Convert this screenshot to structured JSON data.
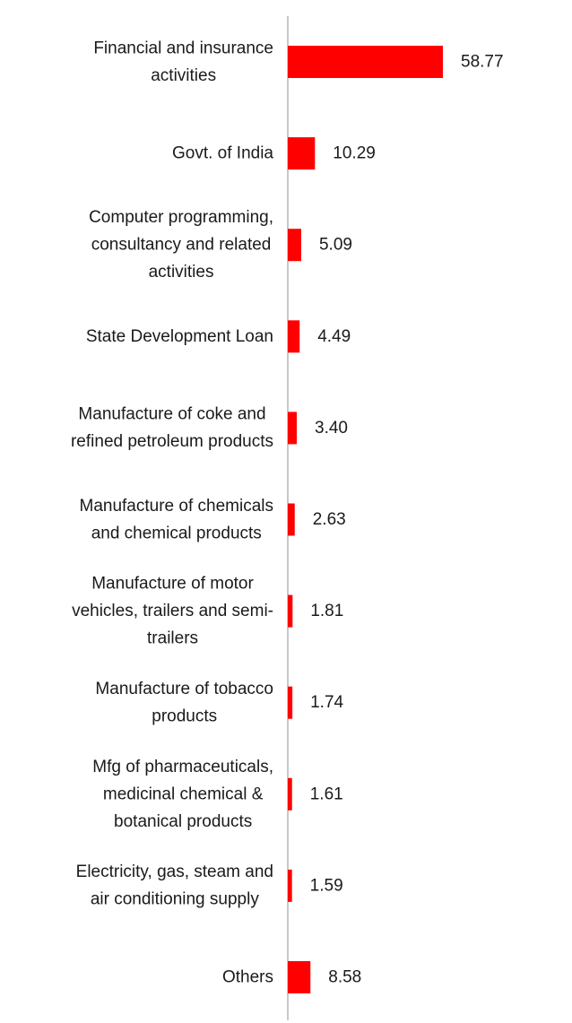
{
  "chart_data": {
    "type": "bar",
    "orientation": "horizontal",
    "categories": [
      "Financial and insurance activities",
      "Govt. of India",
      "Computer programming, consultancy and related activities",
      "State Development Loan",
      "Manufacture of coke and refined petroleum products",
      "Manufacture of chemicals and chemical products",
      "Manufacture of motor vehicles, trailers and semi-trailers",
      "Manufacture of tobacco products",
      "Mfg of pharmaceuticals, medicinal chemical & botanical products",
      "Electricity, gas, steam and air conditioning supply",
      "Others"
    ],
    "label_lines": [
      [
        "Financial and insurance",
        "activities"
      ],
      [
        "Govt. of India"
      ],
      [
        "Computer programming,",
        "consultancy and related",
        "activities"
      ],
      [
        "State Development Loan"
      ],
      [
        "Manufacture of coke and",
        "refined petroleum products"
      ],
      [
        "Manufacture of chemicals",
        "and chemical products"
      ],
      [
        "Manufacture of motor",
        "vehicles, trailers and semi-",
        "trailers"
      ],
      [
        "Manufacture of tobacco",
        "products"
      ],
      [
        "Mfg of pharmaceuticals,",
        "medicinal chemical &",
        "botanical products"
      ],
      [
        "Electricity, gas, steam and",
        "air conditioning supply"
      ],
      [
        "Others"
      ]
    ],
    "values": [
      58.77,
      10.29,
      5.09,
      4.49,
      3.4,
      2.63,
      1.81,
      1.74,
      1.61,
      1.59,
      8.58
    ],
    "value_labels": [
      "58.77",
      "10.29",
      "5.09",
      "4.49",
      "3.40",
      "2.63",
      "1.81",
      "1.74",
      "1.61",
      "1.59",
      "8.58"
    ],
    "title": "",
    "xlabel": "",
    "ylabel": "",
    "xlim": [
      0,
      60
    ],
    "grid": false,
    "legend": "none",
    "bar_color": "#ff0000",
    "axis_color": "#c8c8c8",
    "text_color": "#1a1a1a"
  }
}
